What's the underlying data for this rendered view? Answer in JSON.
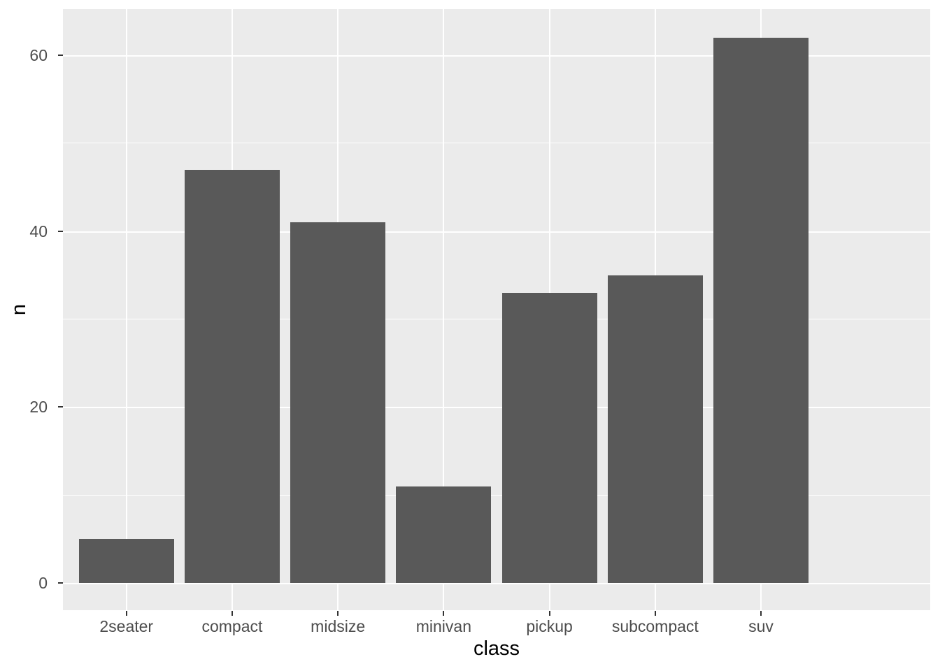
{
  "chart_data": {
    "type": "bar",
    "title": "",
    "xlabel": "class",
    "ylabel": "n",
    "categories": [
      "2seater",
      "compact",
      "midsize",
      "minivan",
      "pickup",
      "subcompact",
      "suv"
    ],
    "values": [
      5,
      47,
      41,
      11,
      33,
      35,
      62
    ],
    "y_major_ticks": [
      0,
      20,
      40,
      60
    ],
    "y_minor_ticks": [
      10,
      30,
      50
    ],
    "ylim": [
      -3.1,
      65.24
    ],
    "bar_width_fraction": 0.9,
    "grid": true,
    "legend_position": "none",
    "theme": {
      "panel_bg": "#EBEBEB",
      "grid_color": "#FFFFFF",
      "bar_fill": "#595959",
      "tick_label_color": "#4D4D4D",
      "tick_mark_color": "#333333",
      "axis_title_color": "#000000",
      "outer_bg": "#FFFFFF"
    }
  }
}
